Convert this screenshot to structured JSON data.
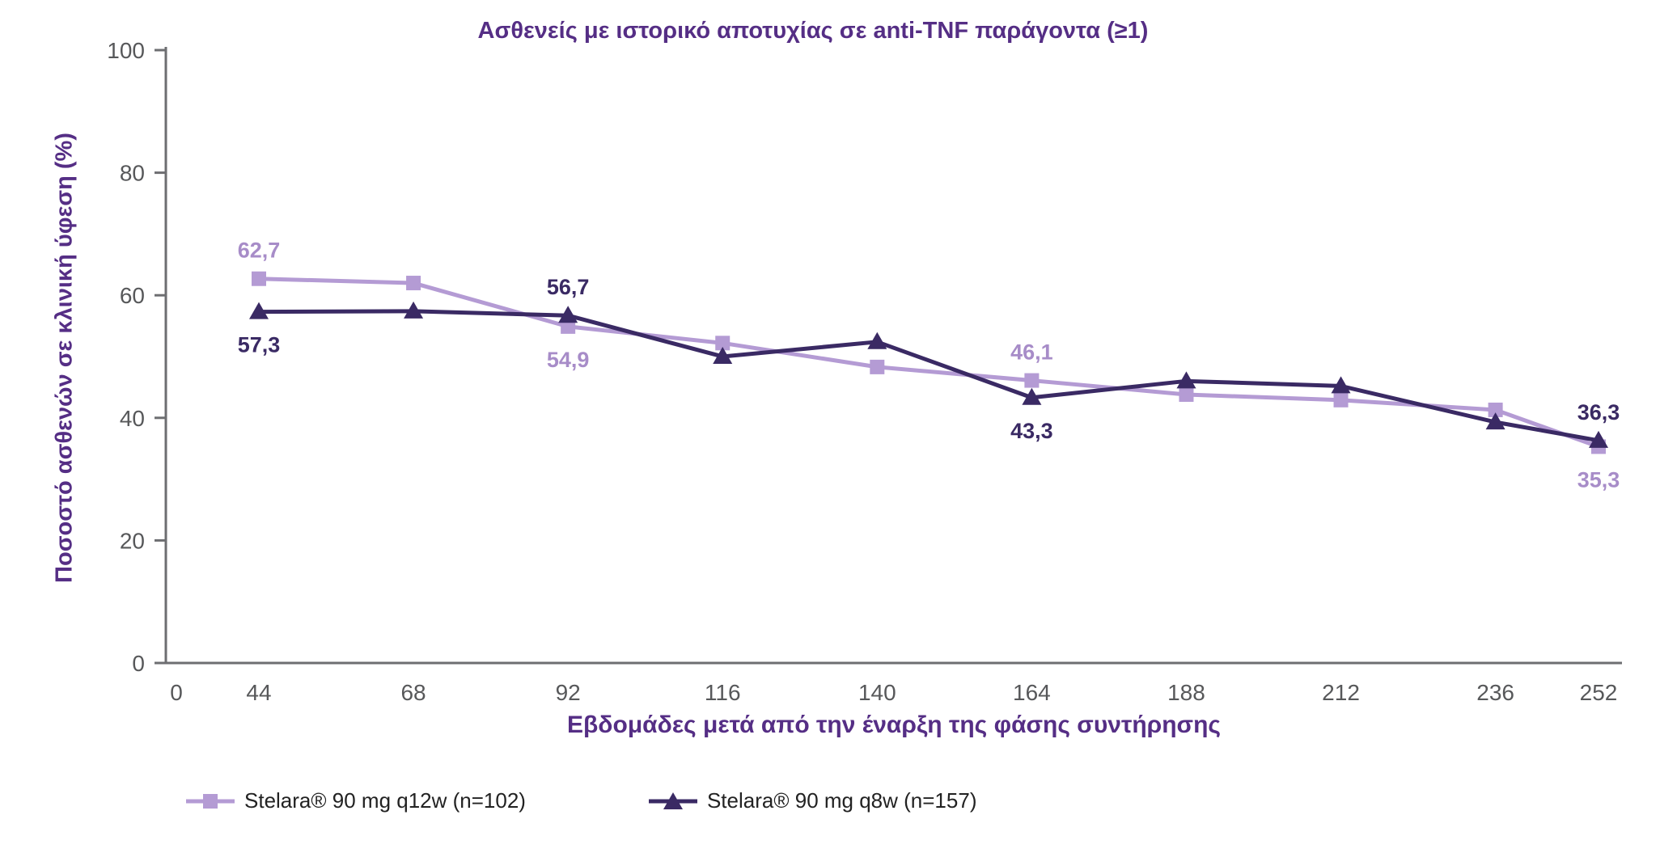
{
  "title": "Ασθενείς με ιστορικό αποτυχίας σε anti-TNF παράγοντα (≥1)",
  "colors": {
    "title_text": "#552e85",
    "axis_line": "#6d6e71",
    "tick_text": "#57585a",
    "series_light": "#b49bd4",
    "series_light_label": "#a78cc8",
    "series_dark": "#3a2a64",
    "legend_text": "#222222"
  },
  "chart_data": {
    "type": "line",
    "title": "Ασθενείς με ιστορικό αποτυχίας σε anti-TNF παράγοντα (≥1)",
    "xlabel": "Εβδομάδες μετά από την έναρξη της φάσης συντήρησης",
    "ylabel": "Ποσοστό ασθενών σε κλινική ύφεση (%)",
    "x": [
      44,
      68,
      92,
      116,
      140,
      164,
      188,
      212,
      236,
      252
    ],
    "x_axis_ticks": [
      0,
      44,
      68,
      92,
      116,
      140,
      164,
      188,
      212,
      236,
      252
    ],
    "y_ticks": [
      0,
      20,
      40,
      60,
      80,
      100
    ],
    "ylim": [
      0,
      100
    ],
    "grid": false,
    "legend_position": "bottom-left",
    "series": [
      {
        "name": "Stelara® 90 mg q12w (n=102)",
        "marker": "square",
        "color": "#b49bd4",
        "label_color": "#a78cc8",
        "values": [
          62.7,
          62.0,
          54.9,
          52.2,
          48.3,
          46.1,
          43.8,
          42.9,
          41.3,
          35.3
        ],
        "point_labels": [
          {
            "week": 44,
            "text": "62,7",
            "position": "above"
          },
          {
            "week": 92,
            "text": "54,9",
            "position": "below"
          },
          {
            "week": 164,
            "text": "46,1",
            "position": "above"
          },
          {
            "week": 252,
            "text": "35,3",
            "position": "below"
          }
        ]
      },
      {
        "name": "Stelara® 90 mg q8w (n=157)",
        "marker": "triangle",
        "color": "#3a2a64",
        "label_color": "#3a2a64",
        "values": [
          57.3,
          57.4,
          56.7,
          50.0,
          52.4,
          43.3,
          46.0,
          45.2,
          39.3,
          36.3
        ],
        "point_labels": [
          {
            "week": 44,
            "text": "57,3",
            "position": "below"
          },
          {
            "week": 92,
            "text": "56,7",
            "position": "above"
          },
          {
            "week": 164,
            "text": "43,3",
            "position": "below"
          },
          {
            "week": 252,
            "text": "36,3",
            "position": "above"
          }
        ]
      }
    ]
  },
  "legend": {
    "items": [
      {
        "label": "Stelara® 90 mg q12w (n=102)",
        "marker": "square"
      },
      {
        "label": "Stelara® 90 mg q8w (n=157)",
        "marker": "triangle"
      }
    ]
  }
}
